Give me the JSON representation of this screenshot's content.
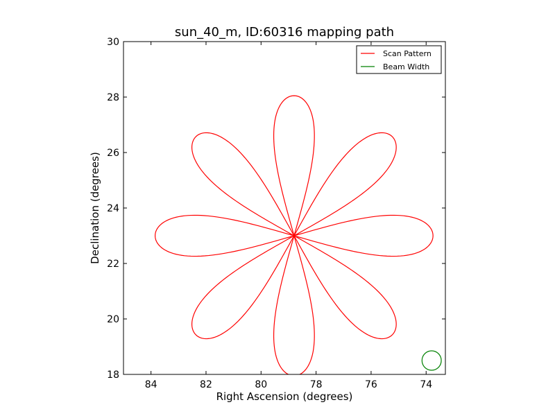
{
  "chart_data": {
    "type": "line",
    "title": "sun_40_m, ID:60316 mapping path",
    "xlabel": "Right Ascension (degrees)",
    "ylabel": "Declination (degrees)",
    "xlim": [
      85.0,
      73.3
    ],
    "ylim": [
      18,
      30
    ],
    "x_inverted": true,
    "xticks": [
      84,
      82,
      80,
      78,
      76,
      74
    ],
    "yticks": [
      18,
      20,
      22,
      24,
      26,
      28,
      30
    ],
    "grid": false,
    "legend_position": "top-right",
    "center": {
      "ra": 78.8,
      "dec": 23.0
    },
    "series": [
      {
        "name": "Scan Pattern",
        "color": "#ff0000",
        "shape": "rose-curve",
        "petals": 8,
        "petal_extent_deg": 5.05,
        "petal_half_width_deg": 0.75,
        "petal_angles_deg": [
          0,
          45,
          90,
          135,
          180,
          225,
          270,
          315
        ],
        "ra_petal_tips": [
          83.85,
          73.75
        ],
        "dec_petal_tips": [
          18.0,
          28.05
        ]
      },
      {
        "name": "Beam Width",
        "color": "#008000",
        "shape": "circle",
        "center": {
          "ra": 73.8,
          "dec": 18.5
        },
        "radius_deg": 0.35
      }
    ]
  }
}
